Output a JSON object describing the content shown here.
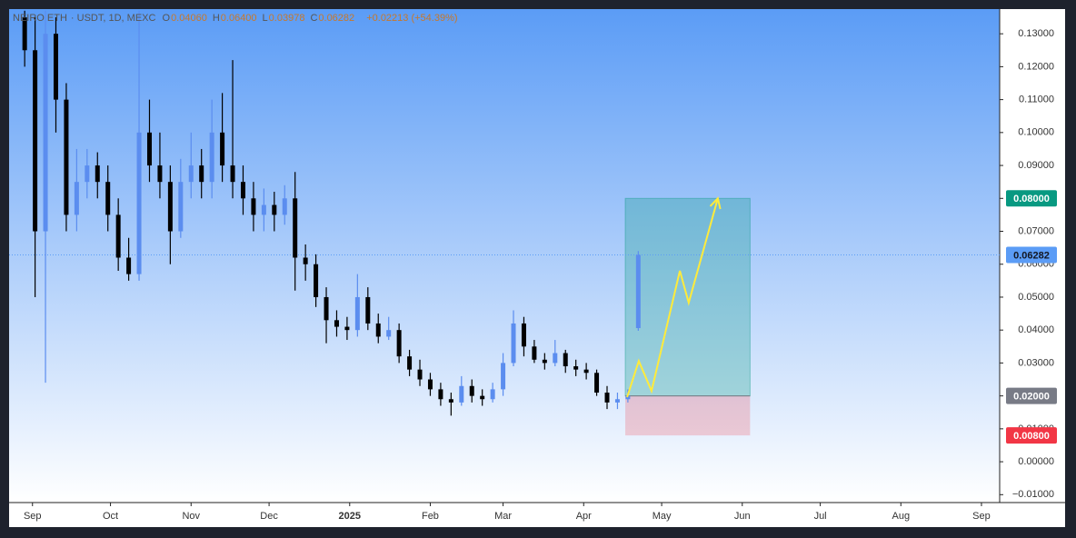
{
  "header": {
    "symbol": "NEIRO ETH",
    "info": "USDT, 1D, MEXC",
    "ohlc": [
      {
        "key": "O",
        "value": "0.04060"
      },
      {
        "key": "H",
        "value": "0.06400"
      },
      {
        "key": "L",
        "value": "0.03978"
      },
      {
        "key": "C",
        "value": "0.06282"
      }
    ],
    "change": "+0.02213 (+54.39%)"
  },
  "chart_data": {
    "type": "candlestick",
    "x": [
      -3,
      1,
      5,
      9,
      13,
      17,
      21,
      25,
      29,
      33,
      37,
      41,
      45,
      49,
      53,
      57,
      61,
      65,
      69,
      73,
      77,
      81,
      85,
      89,
      93,
      97,
      101,
      105,
      109,
      113,
      117,
      121,
      125,
      129,
      133,
      137,
      141,
      145,
      149,
      153,
      157,
      161,
      165,
      169,
      173,
      177,
      181,
      185,
      189,
      193,
      197,
      201,
      205,
      209,
      213,
      217,
      221,
      225,
      229,
      233
    ],
    "open": [
      0.135,
      0.125,
      0.07,
      0.13,
      0.11,
      0.075,
      0.085,
      0.09,
      0.085,
      0.075,
      0.062,
      0.057,
      0.1,
      0.09,
      0.085,
      0.07,
      0.085,
      0.09,
      0.085,
      0.1,
      0.09,
      0.085,
      0.08,
      0.075,
      0.078,
      0.075,
      0.08,
      0.062,
      0.06,
      0.05,
      0.043,
      0.041,
      0.04,
      0.05,
      0.042,
      0.038,
      0.04,
      0.032,
      0.028,
      0.025,
      0.022,
      0.019,
      0.018,
      0.023,
      0.02,
      0.019,
      0.022,
      0.03,
      0.042,
      0.035,
      0.031,
      0.03,
      0.033,
      0.029,
      0.028,
      0.027,
      0.021,
      0.018,
      0.019,
      0.0406
    ],
    "high": [
      0.137,
      0.135,
      0.137,
      0.135,
      0.115,
      0.095,
      0.095,
      0.094,
      0.09,
      0.08,
      0.068,
      0.137,
      0.11,
      0.1,
      0.09,
      0.092,
      0.1,
      0.095,
      0.11,
      0.112,
      0.122,
      0.09,
      0.085,
      0.083,
      0.082,
      0.084,
      0.088,
      0.066,
      0.063,
      0.053,
      0.046,
      0.044,
      0.057,
      0.053,
      0.045,
      0.044,
      0.042,
      0.034,
      0.031,
      0.027,
      0.024,
      0.021,
      0.026,
      0.025,
      0.022,
      0.024,
      0.033,
      0.046,
      0.044,
      0.037,
      0.033,
      0.037,
      0.034,
      0.031,
      0.03,
      0.028,
      0.023,
      0.021,
      0.022,
      0.064
    ],
    "low": [
      0.12,
      0.05,
      0.024,
      0.1,
      0.07,
      0.07,
      0.08,
      0.08,
      0.07,
      0.058,
      0.055,
      0.055,
      0.085,
      0.08,
      0.06,
      0.068,
      0.08,
      0.08,
      0.08,
      0.085,
      0.08,
      0.075,
      0.07,
      0.07,
      0.07,
      0.072,
      0.052,
      0.055,
      0.047,
      0.036,
      0.038,
      0.037,
      0.038,
      0.04,
      0.036,
      0.037,
      0.03,
      0.026,
      0.023,
      0.02,
      0.017,
      0.014,
      0.017,
      0.018,
      0.017,
      0.018,
      0.02,
      0.029,
      0.032,
      0.03,
      0.028,
      0.029,
      0.027,
      0.026,
      0.025,
      0.02,
      0.016,
      0.016,
      0.018,
      0.03978
    ],
    "close": [
      0.125,
      0.07,
      0.13,
      0.11,
      0.075,
      0.085,
      0.09,
      0.085,
      0.075,
      0.062,
      0.057,
      0.1,
      0.09,
      0.085,
      0.07,
      0.085,
      0.09,
      0.085,
      0.1,
      0.09,
      0.085,
      0.08,
      0.075,
      0.078,
      0.075,
      0.08,
      0.062,
      0.06,
      0.05,
      0.043,
      0.041,
      0.04,
      0.05,
      0.042,
      0.038,
      0.04,
      0.032,
      0.028,
      0.025,
      0.022,
      0.019,
      0.018,
      0.023,
      0.02,
      0.019,
      0.022,
      0.03,
      0.042,
      0.035,
      0.031,
      0.03,
      0.033,
      0.029,
      0.028,
      0.027,
      0.021,
      0.018,
      0.019,
      0.02,
      0.06282
    ],
    "up_color": "#5b8def",
    "down_color": "#000000",
    "xlim": [
      -9,
      372
    ],
    "xticks": [
      {
        "value": 0,
        "label": "Sep"
      },
      {
        "value": 30,
        "label": "Oct"
      },
      {
        "value": 61,
        "label": "Nov"
      },
      {
        "value": 91,
        "label": "Dec"
      },
      {
        "value": 122,
        "label": "2025"
      },
      {
        "value": 153,
        "label": "Feb"
      },
      {
        "value": 181,
        "label": "Mar"
      },
      {
        "value": 212,
        "label": "Apr"
      },
      {
        "value": 242,
        "label": "May"
      },
      {
        "value": 273,
        "label": "Jun"
      },
      {
        "value": 303,
        "label": "Jul"
      },
      {
        "value": 334,
        "label": "Aug"
      },
      {
        "value": 365,
        "label": "Sep"
      }
    ],
    "ylim": [
      -0.0124,
      0.1375
    ],
    "yticks": [
      {
        "value": -0.01,
        "label": "−0.01000"
      },
      {
        "value": 0,
        "label": "0.00000"
      },
      {
        "value": 0.01,
        "label": "0.01000"
      },
      {
        "value": 0.02,
        "label": "0.02000"
      },
      {
        "value": 0.03,
        "label": "0.03000"
      },
      {
        "value": 0.04,
        "label": "0.04000"
      },
      {
        "value": 0.05,
        "label": "0.05000"
      },
      {
        "value": 0.06,
        "label": "0.06000"
      },
      {
        "value": 0.07,
        "label": "0.07000"
      },
      {
        "value": 0.08,
        "label": "0.08000"
      },
      {
        "value": 0.09,
        "label": "0.09000"
      },
      {
        "value": 0.1,
        "label": "0.10000"
      },
      {
        "value": 0.11,
        "label": "0.11000"
      },
      {
        "value": 0.12,
        "label": "0.12000"
      },
      {
        "value": 0.13,
        "label": "0.13000"
      }
    ],
    "price_labels": [
      {
        "value": 0.08,
        "label": "0.08000",
        "color": "#089981"
      },
      {
        "value": 0.06282,
        "label": "0.06282",
        "color": "#5b9cf6"
      },
      {
        "value": 0.02,
        "label": "0.02000",
        "color": "#787b86"
      },
      {
        "value": 0.008,
        "label": "0.00800",
        "color": "#f23645"
      }
    ],
    "position": {
      "start": 228,
      "end": 276
    },
    "projection": {
      "x": [
        228.7,
        233.2,
        238.1,
        249,
        252.4,
        263.6
      ],
      "values": [
        0.0196,
        0.0306,
        0.0215,
        0.058,
        0.0483,
        0.08
      ],
      "color": "#ffeb3b"
    }
  }
}
